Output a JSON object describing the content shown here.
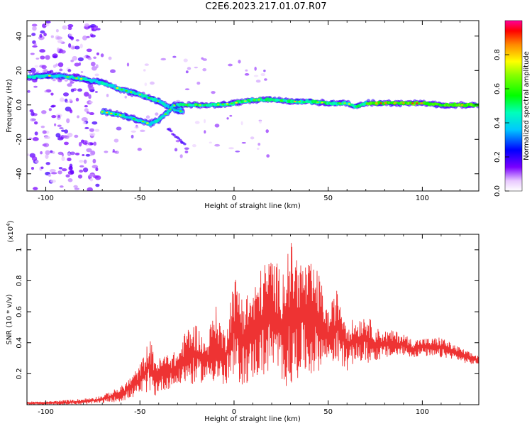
{
  "title": "C2E6.2023.217.01.07.R07",
  "chart_data": [
    {
      "type": "heatmap",
      "xlabel": "Height of straight line (km)",
      "ylabel": "Frequency (Hz)",
      "xlim": [
        -110,
        130
      ],
      "ylim": [
        -50,
        49
      ],
      "xticks": [
        -100,
        -50,
        0,
        50,
        100
      ],
      "yticks": [
        -40,
        -20,
        0,
        20,
        40
      ],
      "colorbar": {
        "label": "Normalized spectral amplitude",
        "range": [
          0,
          1
        ],
        "ticks": [
          0.0,
          0.2,
          0.4,
          0.6,
          0.8
        ]
      },
      "ridges": [
        {
          "x": [
            -110,
            -100,
            -90,
            -80,
            -70,
            -60,
            -50,
            -40,
            -35,
            -30,
            -27
          ],
          "y": [
            16,
            17,
            16.5,
            15,
            13,
            9,
            6,
            2,
            -1,
            -3,
            -4
          ]
        },
        {
          "x": [
            -70,
            -60,
            -50,
            -45,
            -40,
            -35,
            -32,
            -28
          ],
          "y": [
            -4,
            -6,
            -9,
            -11,
            -9,
            -4,
            0,
            -2
          ]
        },
        {
          "x": [
            -30,
            -25,
            -20,
            -10,
            0,
            10,
            20,
            30,
            40,
            50,
            55,
            60,
            65,
            70,
            80,
            90,
            100,
            110,
            120,
            130
          ],
          "y": [
            0,
            0,
            0,
            0,
            1,
            3,
            3,
            2,
            2,
            1,
            1,
            1,
            -1,
            1,
            1,
            1,
            1,
            0,
            0,
            0
          ]
        }
      ]
    },
    {
      "type": "line",
      "xlabel": "Height of straight line (km)",
      "ylabel": "SNR (10 * v/v)",
      "y_multiplier": "(x10",
      "y_multiplier_exp": "4",
      "xlim": [
        -110,
        130
      ],
      "ylim": [
        0,
        1.1
      ],
      "xticks": [
        -100,
        -50,
        0,
        50,
        100
      ],
      "yticks": [
        0.2,
        0.4,
        0.6,
        0.8,
        1.0
      ],
      "series": [
        {
          "color": "#ee3333",
          "x": [
            -110,
            -100,
            -90,
            -80,
            -70,
            -60,
            -55,
            -50,
            -47,
            -45,
            -42,
            -40,
            -35,
            -30,
            -25,
            -20,
            -15,
            -10,
            -5,
            0,
            5,
            10,
            15,
            20,
            25,
            30,
            35,
            40,
            45,
            50,
            55,
            60,
            65,
            70,
            75,
            80,
            85,
            90,
            95,
            100,
            105,
            110,
            115,
            120,
            125,
            130
          ],
          "envelope": [
            0.02,
            0.02,
            0.03,
            0.04,
            0.06,
            0.12,
            0.18,
            0.26,
            0.35,
            0.44,
            0.32,
            0.3,
            0.34,
            0.34,
            0.5,
            0.53,
            0.4,
            0.65,
            0.48,
            0.85,
            0.72,
            0.75,
            0.9,
            0.98,
            0.87,
            1.06,
            0.95,
            0.92,
            0.86,
            0.6,
            0.76,
            0.55,
            0.55,
            0.6,
            0.5,
            0.48,
            0.48,
            0.46,
            0.42,
            0.43,
            0.43,
            0.44,
            0.4,
            0.37,
            0.34,
            0.32
          ],
          "floor": [
            0.0,
            0.0,
            0.0,
            0.0,
            0.01,
            0.02,
            0.04,
            0.06,
            0.08,
            0.07,
            0.05,
            0.08,
            0.1,
            0.12,
            0.14,
            0.12,
            0.16,
            0.14,
            0.1,
            0.15,
            0.12,
            0.16,
            0.18,
            0.2,
            0.15,
            0.08,
            0.2,
            0.18,
            0.22,
            0.28,
            0.26,
            0.22,
            0.28,
            0.26,
            0.28,
            0.3,
            0.3,
            0.32,
            0.3,
            0.32,
            0.3,
            0.3,
            0.3,
            0.28,
            0.26,
            0.26
          ]
        }
      ]
    }
  ]
}
